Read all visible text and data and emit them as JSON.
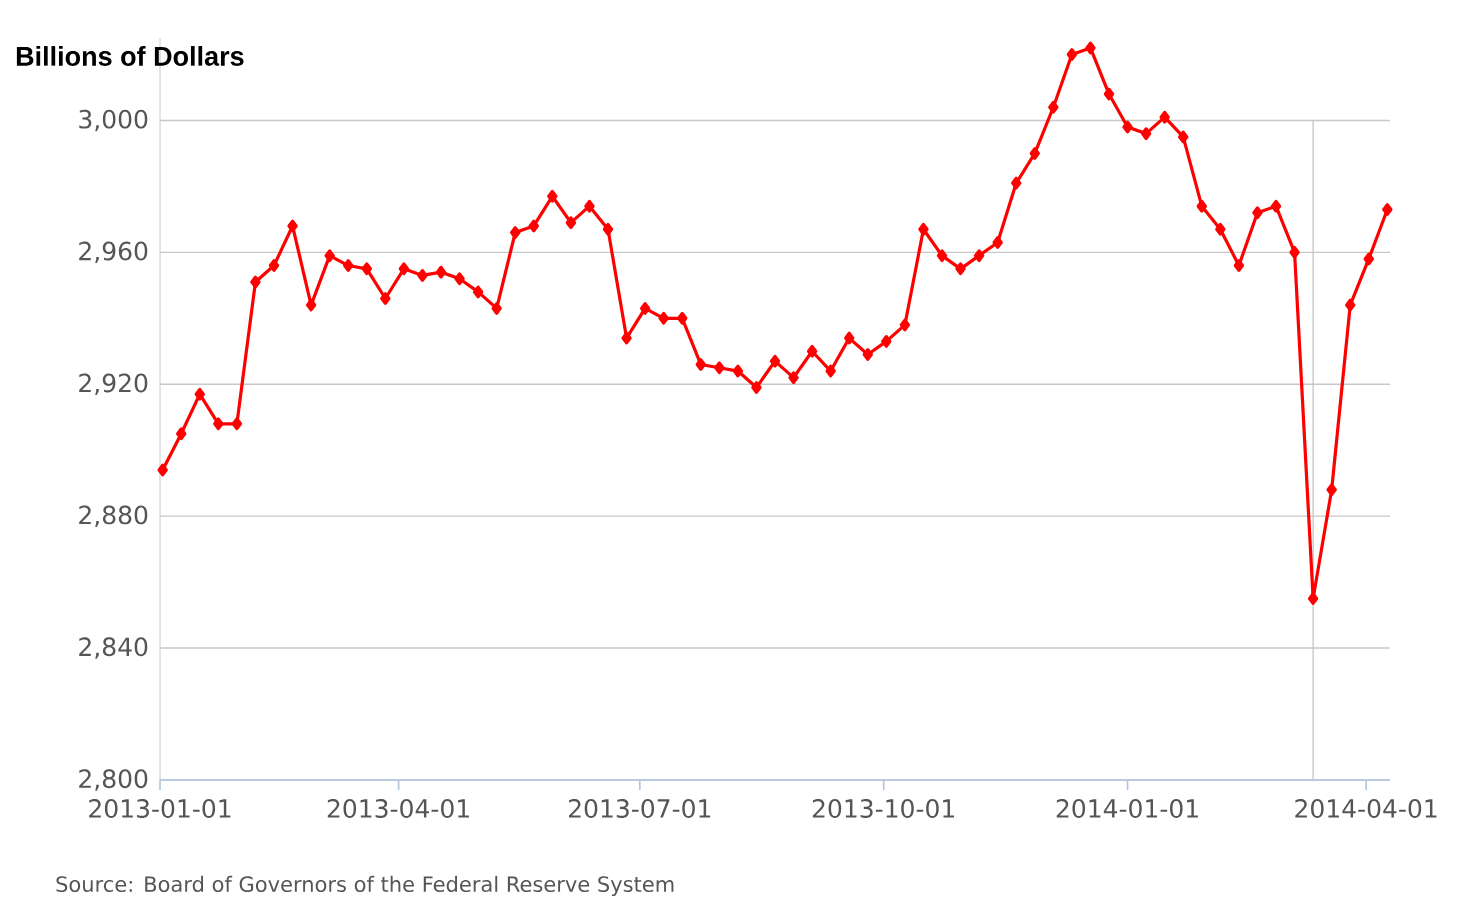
{
  "chart_data": {
    "type": "line",
    "ylabel": "Billions of Dollars",
    "annotations": [
      "Source: Board of Governors of the Federal Reserve System"
    ],
    "x": [
      "2013-01-02",
      "2013-01-09",
      "2013-01-16",
      "2013-01-23",
      "2013-01-30",
      "2013-02-06",
      "2013-02-13",
      "2013-02-20",
      "2013-02-27",
      "2013-03-06",
      "2013-03-13",
      "2013-03-20",
      "2013-03-27",
      "2013-04-03",
      "2013-04-10",
      "2013-04-17",
      "2013-04-24",
      "2013-05-01",
      "2013-05-08",
      "2013-05-15",
      "2013-05-22",
      "2013-05-29",
      "2013-06-05",
      "2013-06-12",
      "2013-06-19",
      "2013-06-26",
      "2013-07-03",
      "2013-07-10",
      "2013-07-17",
      "2013-07-24",
      "2013-07-31",
      "2013-08-07",
      "2013-08-14",
      "2013-08-21",
      "2013-08-28",
      "2013-09-04",
      "2013-09-11",
      "2013-09-18",
      "2013-09-25",
      "2013-10-02",
      "2013-10-09",
      "2013-10-16",
      "2013-10-23",
      "2013-10-30",
      "2013-11-06",
      "2013-11-13",
      "2013-11-20",
      "2013-11-27",
      "2013-12-04",
      "2013-12-11",
      "2013-12-18",
      "2013-12-25",
      "2014-01-01",
      "2014-01-08",
      "2014-01-15",
      "2014-01-22",
      "2014-01-29",
      "2014-02-05",
      "2014-02-12",
      "2014-02-19",
      "2014-02-26",
      "2014-03-05",
      "2014-03-12",
      "2014-03-19",
      "2014-03-26",
      "2014-04-02",
      "2014-04-09"
    ],
    "values": [
      2894,
      2905,
      2917,
      2908,
      2908,
      2951,
      2956,
      2968,
      2944,
      2959,
      2956,
      2955,
      2946,
      2955,
      2953,
      2954,
      2952,
      2948,
      2943,
      2966,
      2968,
      2977,
      2969,
      2974,
      2967,
      2934,
      2943,
      2940,
      2940,
      2926,
      2925,
      2924,
      2919,
      2927,
      2922,
      2930,
      2924,
      2934,
      2929,
      2933,
      2938,
      2967,
      2959,
      2955,
      2959,
      2963,
      2981,
      2990,
      3004,
      3020,
      3022,
      3008,
      2998,
      2996,
      3001,
      2995,
      2974,
      2967,
      2956,
      2972,
      2974,
      2960,
      2855,
      2888,
      2944,
      2958,
      2973
    ],
    "color": "#ff0000",
    "marker": "diamond",
    "line_style": "solid",
    "grid": "y",
    "xlim": [
      "2013-01-01",
      "2014-04-10"
    ],
    "xticks": [
      "2013-01-01",
      "2013-04-01",
      "2013-07-01",
      "2013-10-01",
      "2014-01-01",
      "2014-04-01"
    ],
    "ylim": [
      2800,
      3025
    ],
    "yticks": [
      {
        "value": 2800,
        "label": "2,800"
      },
      {
        "value": 2840,
        "label": "2,840"
      },
      {
        "value": 2880,
        "label": "2,880"
      },
      {
        "value": 2920,
        "label": "2,920"
      },
      {
        "value": 2960,
        "label": "2,960"
      },
      {
        "value": 3000,
        "label": "3,000"
      }
    ],
    "ref_lines": [
      {
        "axis": "x",
        "value": "2014-03-12",
        "color": "#c0c0c0"
      }
    ]
  }
}
